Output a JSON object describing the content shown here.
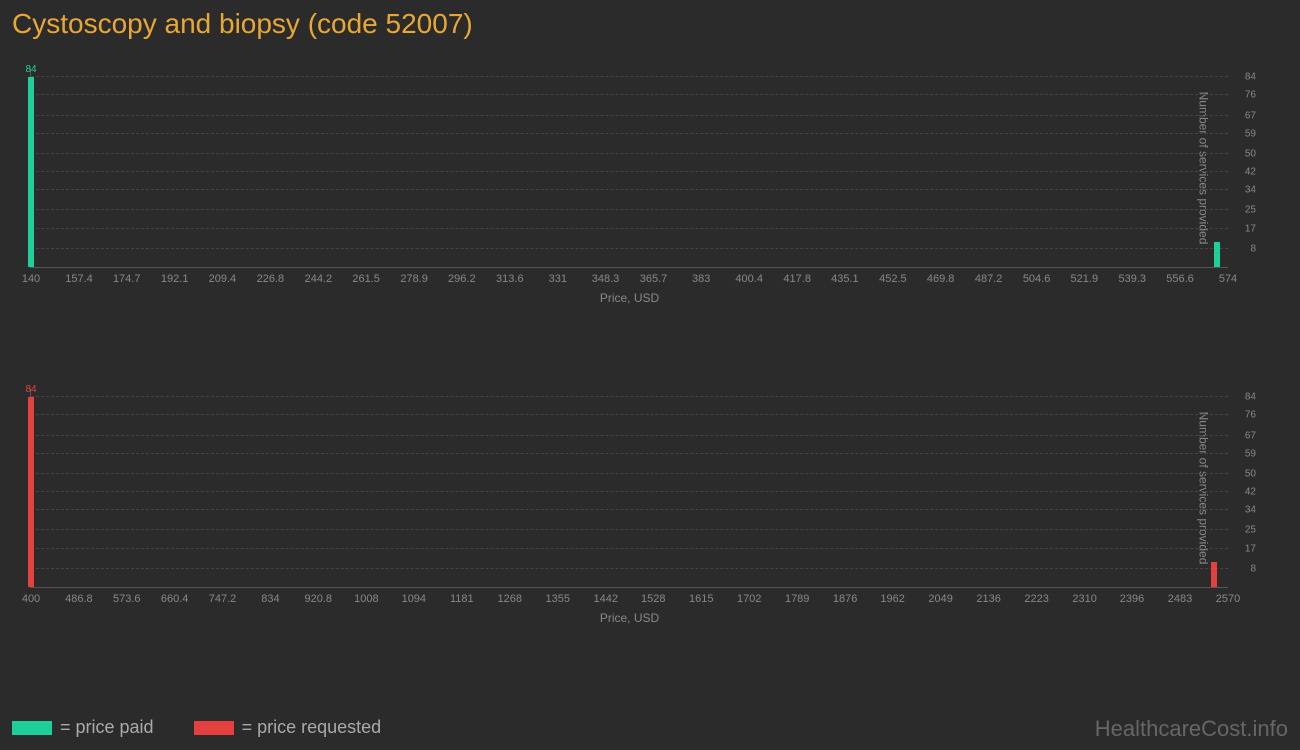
{
  "title": "Cystoscopy and biopsy (code 52007)",
  "watermark": "HealthcareCost.info",
  "legend": {
    "paid": {
      "label": "= price paid",
      "color": "#1fcf9a"
    },
    "requested": {
      "label": "= price requested",
      "color": "#e4403f"
    }
  },
  "shared": {
    "x_axis_label": "Price, USD",
    "y_axis_label": "Number of services provided",
    "y_ticks": [
      8,
      17,
      25,
      34,
      42,
      50,
      59,
      67,
      76,
      84
    ],
    "y_max": 88,
    "background_color": "#2b2b2b",
    "grid_color": "#444444",
    "axis_color": "#555555",
    "tick_color": "#888888"
  },
  "chart_paid": {
    "color": "#1fcf9a",
    "x_min": 140,
    "x_max": 574,
    "x_ticks": [
      140,
      157.4,
      174.7,
      192.1,
      209.4,
      226.8,
      244.2,
      261.5,
      278.9,
      296.2,
      313.6,
      331,
      348.3,
      365.7,
      383,
      400.4,
      417.8,
      435.1,
      452.5,
      469.8,
      487.2,
      504.6,
      521.9,
      539.3,
      556.6,
      574
    ],
    "bars": [
      {
        "x": 140,
        "value": 84,
        "label": "84"
      },
      {
        "x": 570,
        "value": 11,
        "label": ""
      }
    ]
  },
  "chart_requested": {
    "color": "#e4403f",
    "x_min": 400,
    "x_max": 2570,
    "x_ticks": [
      400,
      486.8,
      573.6,
      660.4,
      747.2,
      834,
      920.8,
      1008,
      1094,
      1181,
      1268,
      1355,
      1442,
      1528,
      1615,
      1702,
      1789,
      1876,
      1962,
      2049,
      2136,
      2223,
      2310,
      2396,
      2483,
      2570
    ],
    "bars": [
      {
        "x": 400,
        "value": 84,
        "label": "84"
      },
      {
        "x": 2545,
        "value": 11,
        "label": ""
      }
    ]
  }
}
